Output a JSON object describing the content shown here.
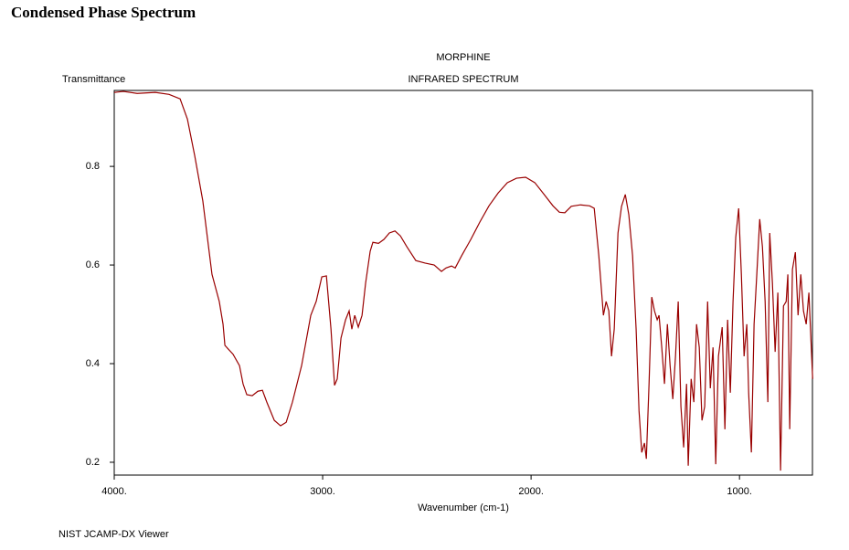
{
  "header": {
    "title": "Condensed Phase Spectrum"
  },
  "chart_data": {
    "type": "line",
    "title": "MORPHINE",
    "subtitle": "INFRARED SPECTRUM",
    "ylabel": "Transmittance",
    "xlabel": "Wavenumber (cm-1)",
    "color": "#990000",
    "x": [
      4000,
      3956,
      3890,
      3803,
      3737,
      3684,
      3649,
      3614,
      3575,
      3531,
      3496,
      3478,
      3469,
      3430,
      3399,
      3382,
      3364,
      3338,
      3311,
      3289,
      3268,
      3232,
      3202,
      3175,
      3145,
      3101,
      3057,
      3031,
      3004,
      2982,
      2960,
      2943,
      2930,
      2912,
      2890,
      2873,
      2860,
      2846,
      2829,
      2811,
      2794,
      2772,
      2759,
      2732,
      2706,
      2680,
      2653,
      2627,
      2596,
      2553,
      2509,
      2465,
      2430,
      2408,
      2382,
      2364,
      2333,
      2289,
      2246,
      2202,
      2158,
      2114,
      2070,
      2026,
      1982,
      1939,
      1895,
      1864,
      1838,
      1807,
      1763,
      1719,
      1697,
      1675,
      1653,
      1640,
      1627,
      1614,
      1601,
      1583,
      1566,
      1548,
      1531,
      1513,
      1496,
      1482,
      1469,
      1456,
      1447,
      1434,
      1421,
      1408,
      1395,
      1386,
      1373,
      1360,
      1346,
      1333,
      1320,
      1307,
      1294,
      1281,
      1268,
      1254,
      1246,
      1232,
      1219,
      1206,
      1193,
      1180,
      1167,
      1153,
      1140,
      1127,
      1114,
      1101,
      1083,
      1070,
      1057,
      1044,
      1031,
      1018,
      1004,
      991,
      978,
      965,
      956,
      943,
      930,
      917,
      903,
      890,
      877,
      864,
      855,
      842,
      829,
      816,
      803,
      789,
      776,
      768,
      759,
      746,
      732,
      719,
      706,
      693,
      680,
      667,
      649
    ],
    "values": [
      0.95,
      0.952,
      0.948,
      0.95,
      0.946,
      0.937,
      0.896,
      0.822,
      0.73,
      0.581,
      0.526,
      0.48,
      0.437,
      0.419,
      0.396,
      0.359,
      0.337,
      0.335,
      0.344,
      0.346,
      0.322,
      0.285,
      0.274,
      0.281,
      0.322,
      0.396,
      0.498,
      0.526,
      0.576,
      0.578,
      0.47,
      0.356,
      0.369,
      0.452,
      0.489,
      0.507,
      0.47,
      0.498,
      0.474,
      0.498,
      0.563,
      0.628,
      0.646,
      0.644,
      0.652,
      0.665,
      0.669,
      0.659,
      0.637,
      0.609,
      0.604,
      0.6,
      0.587,
      0.594,
      0.598,
      0.594,
      0.619,
      0.652,
      0.687,
      0.72,
      0.746,
      0.767,
      0.776,
      0.778,
      0.767,
      0.744,
      0.72,
      0.707,
      0.706,
      0.719,
      0.722,
      0.72,
      0.715,
      0.619,
      0.498,
      0.526,
      0.507,
      0.415,
      0.47,
      0.665,
      0.719,
      0.743,
      0.702,
      0.619,
      0.47,
      0.304,
      0.22,
      0.239,
      0.207,
      0.359,
      0.535,
      0.507,
      0.489,
      0.498,
      0.433,
      0.359,
      0.48,
      0.396,
      0.328,
      0.415,
      0.526,
      0.313,
      0.23,
      0.359,
      0.193,
      0.369,
      0.322,
      0.48,
      0.433,
      0.285,
      0.313,
      0.526,
      0.35,
      0.433,
      0.196,
      0.415,
      0.474,
      0.267,
      0.489,
      0.341,
      0.526,
      0.656,
      0.715,
      0.581,
      0.415,
      0.48,
      0.341,
      0.22,
      0.48,
      0.581,
      0.693,
      0.637,
      0.526,
      0.322,
      0.665,
      0.563,
      0.424,
      0.544,
      0.183,
      0.517,
      0.526,
      0.581,
      0.267,
      0.591,
      0.626,
      0.498,
      0.581,
      0.507,
      0.48,
      0.544,
      0.369
    ],
    "xlim": [
      4000,
      650
    ],
    "xticks": [
      {
        "value": 4000,
        "label": "4000."
      },
      {
        "value": 3000,
        "label": "3000."
      },
      {
        "value": 2000,
        "label": "2000."
      },
      {
        "value": 1000,
        "label": "1000."
      }
    ],
    "ylim": [
      0.174,
      0.954
    ],
    "yticks": [
      0.2,
      0.4,
      0.6,
      0.8
    ]
  },
  "footer": {
    "text": "NIST JCAMP-DX Viewer"
  }
}
